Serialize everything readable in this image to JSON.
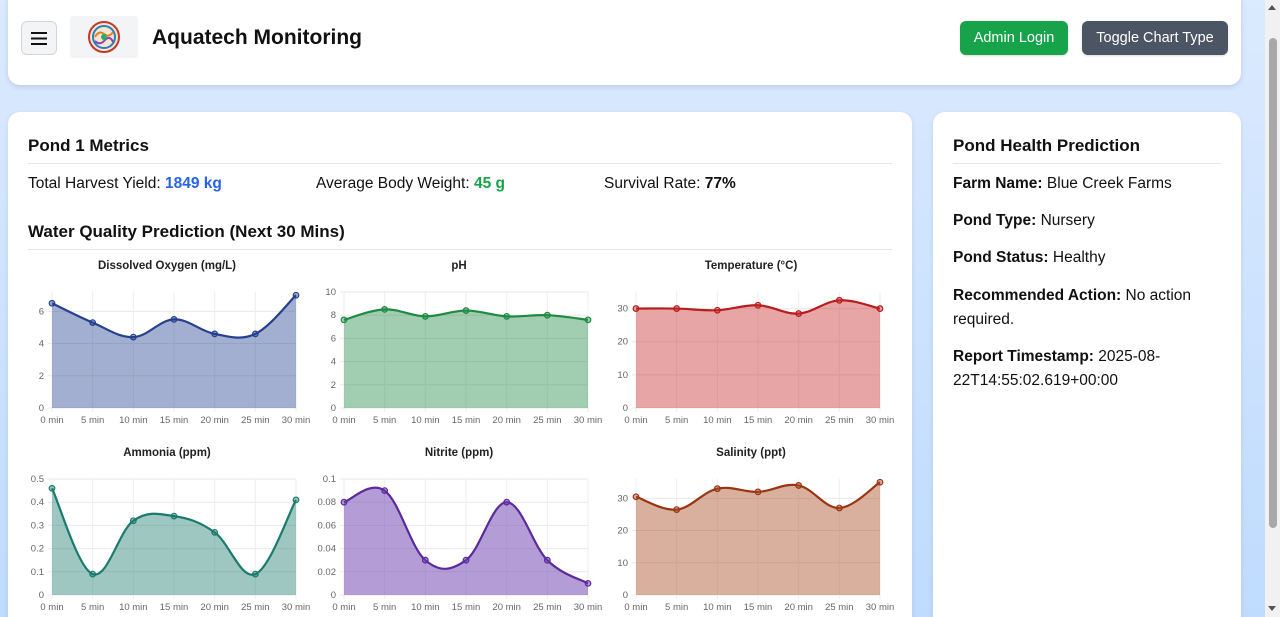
{
  "header": {
    "title": "Aquatech Monitoring",
    "admin_label": "Admin Login",
    "toggle_label": "Toggle Chart Type"
  },
  "pond": {
    "metrics_title": "Pond 1 Metrics",
    "harvest_label": "Total Harvest Yield:",
    "harvest_value": "1849 kg",
    "weight_label": "Average Body Weight:",
    "weight_value": "45 g",
    "survival_label": "Survival Rate:",
    "survival_value": "77%",
    "prediction_title": "Water Quality Prediction (Next 30 Mins)"
  },
  "colors": {
    "harvest": "#2563eb",
    "weight": "#16a34a"
  },
  "chart_data": [
    {
      "type": "area",
      "title": "Dissolved Oxygen (mg/L)",
      "x": [
        "0 min",
        "5 min",
        "10 min",
        "15 min",
        "20 min",
        "25 min",
        "30 min"
      ],
      "series": [
        {
          "values": [
            6.5,
            5.3,
            4.4,
            5.5,
            4.6,
            4.6,
            7.0
          ]
        }
      ],
      "ylim": [
        0,
        7.2
      ],
      "yticks": [
        0,
        2,
        4,
        6
      ],
      "line": "#24408e",
      "fill": "rgba(36,64,142,0.42)"
    },
    {
      "type": "area",
      "title": "pH",
      "x": [
        "0 min",
        "5 min",
        "10 min",
        "15 min",
        "20 min",
        "25 min",
        "30 min"
      ],
      "series": [
        {
          "values": [
            7.6,
            8.5,
            7.9,
            8.4,
            7.9,
            8.0,
            7.6
          ]
        }
      ],
      "ylim": [
        0,
        10
      ],
      "yticks": [
        0,
        2,
        4,
        6,
        8,
        10
      ],
      "line": "#1e8a43",
      "fill": "rgba(30,138,67,0.42)"
    },
    {
      "type": "area",
      "title": "Temperature (°C)",
      "x": [
        "0 min",
        "5 min",
        "10 min",
        "15 min",
        "20 min",
        "25 min",
        "30 min"
      ],
      "series": [
        {
          "values": [
            30,
            30,
            29.5,
            31,
            28.5,
            32.5,
            30
          ]
        }
      ],
      "ylim": [
        0,
        35
      ],
      "yticks": [
        0,
        10,
        20,
        30
      ],
      "line": "#b91c1c",
      "fill": "rgba(200,40,40,0.42)"
    },
    {
      "type": "area",
      "title": "Ammonia (ppm)",
      "x": [
        "0 min",
        "5 min",
        "10 min",
        "15 min",
        "20 min",
        "25 min",
        "30 min"
      ],
      "series": [
        {
          "values": [
            0.46,
            0.09,
            0.32,
            0.34,
            0.27,
            0.09,
            0.41
          ]
        }
      ],
      "ylim": [
        0,
        0.5
      ],
      "yticks": [
        0,
        0.1,
        0.2,
        0.3,
        0.4,
        0.5
      ],
      "line": "#1a7a6e",
      "fill": "rgba(26,122,110,0.42)"
    },
    {
      "type": "area",
      "title": "Nitrite (ppm)",
      "x": [
        "0 min",
        "5 min",
        "10 min",
        "15 min",
        "20 min",
        "25 min",
        "30 min"
      ],
      "series": [
        {
          "values": [
            0.08,
            0.09,
            0.03,
            0.03,
            0.08,
            0.03,
            0.01
          ]
        }
      ],
      "ylim": [
        0,
        0.1
      ],
      "yticks": [
        0,
        0.02,
        0.04,
        0.06,
        0.08,
        0.1
      ],
      "line": "#5b2a9b",
      "fill": "rgba(106,60,175,0.5)"
    },
    {
      "type": "area",
      "title": "Salinity (ppt)",
      "x": [
        "0 min",
        "5 min",
        "10 min",
        "15 min",
        "20 min",
        "25 min",
        "30 min"
      ],
      "series": [
        {
          "values": [
            30.5,
            26.5,
            33,
            32,
            34,
            27,
            35
          ]
        }
      ],
      "ylim": [
        0,
        36
      ],
      "yticks": [
        0,
        10,
        20,
        30
      ],
      "line": "#9a3412",
      "fill": "rgba(170,80,40,0.45)"
    }
  ],
  "health": {
    "title": "Pond Health Prediction",
    "farm_label": "Farm Name:",
    "farm_value": "Blue Creek Farms",
    "type_label": "Pond Type:",
    "type_value": "Nursery",
    "status_label": "Pond Status:",
    "status_value": "Healthy",
    "action_label": "Recommended Action:",
    "action_value": "No action required.",
    "timestamp_label": "Report Timestamp:",
    "timestamp_value": "2025-08-22T14:55:02.619+00:00"
  }
}
